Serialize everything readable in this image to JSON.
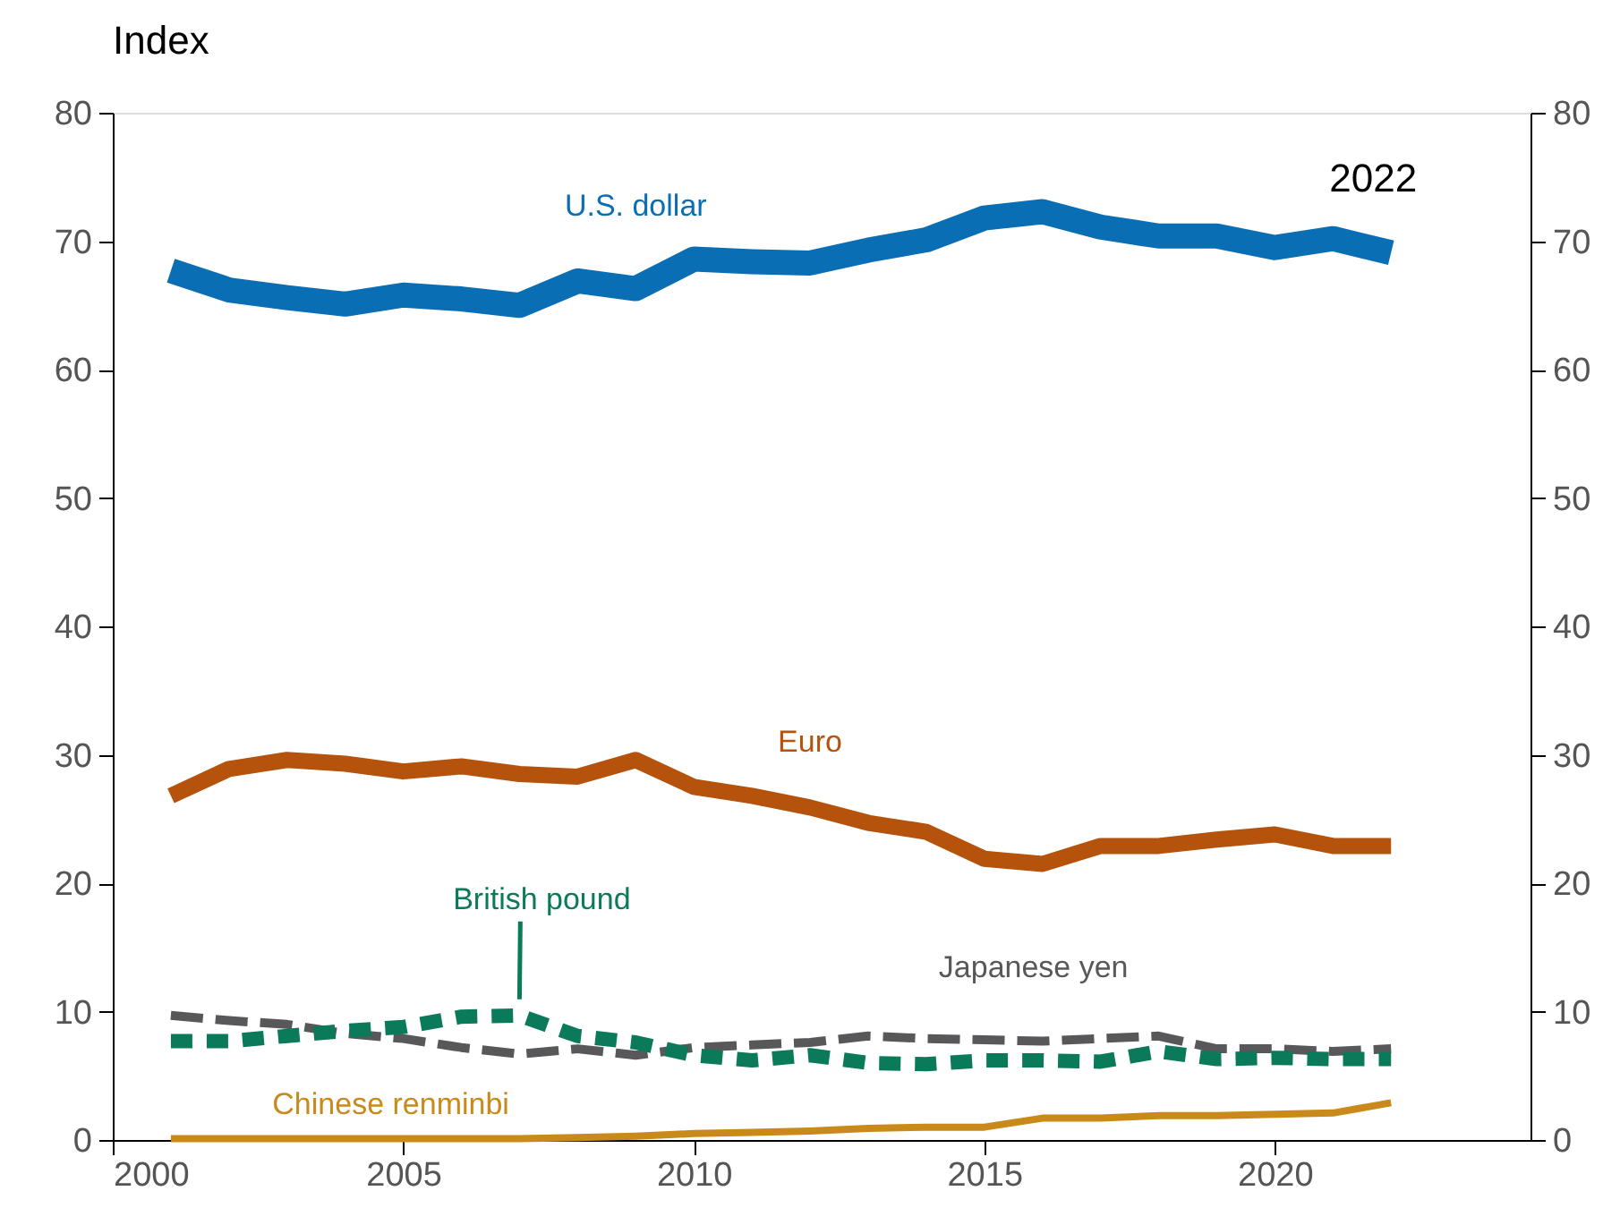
{
  "chart_data": {
    "type": "line",
    "ylabel": "Index",
    "x": [
      2001,
      2002,
      2003,
      2004,
      2005,
      2006,
      2007,
      2008,
      2009,
      2010,
      2011,
      2012,
      2013,
      2014,
      2015,
      2016,
      2017,
      2018,
      2019,
      2020,
      2021,
      2022
    ],
    "series": [
      {
        "name": "U.S. dollar",
        "color": "#0a6eb4",
        "line_style": "solid",
        "values": [
          67.7,
          66.2,
          65.6,
          65.1,
          65.8,
          65.5,
          65.0,
          66.9,
          66.3,
          68.6,
          68.4,
          68.3,
          69.3,
          70.1,
          71.8,
          72.3,
          71.1,
          70.4,
          70.4,
          69.5,
          70.2,
          69.1
        ]
      },
      {
        "name": "Euro",
        "color": "#b5530c",
        "line_style": "solid",
        "values": [
          26.8,
          28.9,
          29.6,
          29.3,
          28.7,
          29.1,
          28.5,
          28.3,
          29.6,
          27.5,
          26.8,
          25.9,
          24.7,
          24.0,
          21.9,
          21.5,
          22.9,
          22.9,
          23.4,
          23.8,
          22.9,
          22.9
        ]
      },
      {
        "name": "Japanese yen",
        "color": "#58585a",
        "line_style": "dashed",
        "values": [
          9.7,
          9.3,
          9.0,
          8.3,
          7.9,
          7.2,
          6.7,
          7.1,
          6.6,
          7.2,
          7.4,
          7.6,
          8.1,
          7.9,
          7.8,
          7.7,
          7.9,
          8.1,
          7.1,
          7.1,
          6.9,
          7.1
        ]
      },
      {
        "name": "British pound",
        "color": "#0a7a5a",
        "line_style": "dashed",
        "values": [
          7.7,
          7.7,
          8.1,
          8.5,
          8.8,
          9.6,
          9.7,
          8.1,
          7.6,
          6.6,
          6.2,
          6.6,
          6.0,
          5.9,
          6.2,
          6.2,
          6.1,
          6.9,
          6.3,
          6.4,
          6.3,
          6.3
        ]
      },
      {
        "name": "Chinese renminbi",
        "color": "#c98a1b",
        "line_style": "solid",
        "values": [
          0.1,
          0.1,
          0.1,
          0.1,
          0.1,
          0.1,
          0.1,
          0.2,
          0.3,
          0.5,
          0.6,
          0.7,
          0.9,
          1.0,
          1.0,
          1.7,
          1.7,
          1.9,
          1.9,
          2.0,
          2.1,
          2.9
        ]
      }
    ],
    "annotations": [
      "2022"
    ],
    "xlim": [
      2000,
      2024.4
    ],
    "xticks": [
      2000,
      2005,
      2010,
      2015,
      2020
    ],
    "ylim": [
      0,
      80
    ],
    "yticks": [
      0,
      10,
      20,
      30,
      40,
      50,
      60,
      70,
      80
    ],
    "y2lim": [
      0,
      80
    ],
    "y2ticks": [
      0,
      10,
      20,
      30,
      40,
      50,
      60,
      70,
      80
    ],
    "grid": false
  }
}
